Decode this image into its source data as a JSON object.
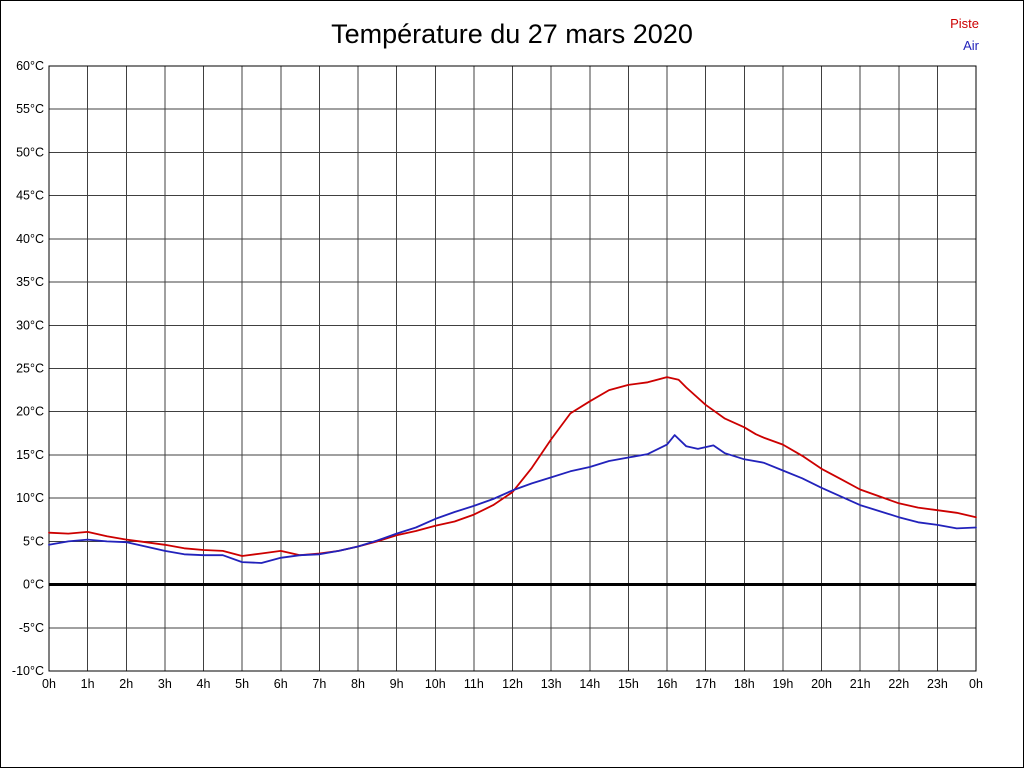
{
  "title": "Température du 27 mars 2020",
  "legend": [
    {
      "label": "Piste",
      "color": "#cc0000"
    },
    {
      "label": "Air",
      "color": "#2222bb"
    }
  ],
  "chart_data": {
    "type": "line",
    "title": "Température du 27 mars 2020",
    "xlabel": "",
    "ylabel": "",
    "ylim": [
      -10,
      60
    ],
    "y_tick_step": 5,
    "y_tick_labels": [
      "60°C",
      "55°C",
      "50°C",
      "45°C",
      "40°C",
      "35°C",
      "30°C",
      "25°C",
      "20°C",
      "15°C",
      "10°C",
      "5°C",
      "0°C",
      "-5°C",
      "-10°C"
    ],
    "x_range_hours": [
      0,
      24
    ],
    "x_tick_labels": [
      "0h",
      "1h",
      "2h",
      "3h",
      "4h",
      "5h",
      "6h",
      "7h",
      "8h",
      "9h",
      "10h",
      "11h",
      "12h",
      "13h",
      "14h",
      "15h",
      "16h",
      "17h",
      "18h",
      "19h",
      "20h",
      "21h",
      "22h",
      "23h",
      "0h"
    ],
    "grid": true,
    "grid_color": "#404040",
    "zero_line": true,
    "zero_line_color": "#000000",
    "legend_position": "top-right",
    "series": [
      {
        "name": "Piste",
        "color": "#cc0000",
        "points": [
          [
            0,
            6.0
          ],
          [
            0.5,
            5.9
          ],
          [
            1,
            6.1
          ],
          [
            1.5,
            5.6
          ],
          [
            2,
            5.2
          ],
          [
            2.5,
            4.9
          ],
          [
            3,
            4.6
          ],
          [
            3.5,
            4.2
          ],
          [
            4,
            4.0
          ],
          [
            4.5,
            3.9
          ],
          [
            5,
            3.3
          ],
          [
            5.5,
            3.6
          ],
          [
            6,
            3.9
          ],
          [
            6.5,
            3.4
          ],
          [
            7,
            3.6
          ],
          [
            7.5,
            3.9
          ],
          [
            8,
            4.4
          ],
          [
            8.5,
            5.0
          ],
          [
            9,
            5.7
          ],
          [
            9.5,
            6.2
          ],
          [
            10,
            6.8
          ],
          [
            10.5,
            7.3
          ],
          [
            11,
            8.1
          ],
          [
            11.5,
            9.2
          ],
          [
            12,
            10.7
          ],
          [
            12.5,
            13.5
          ],
          [
            13,
            16.8
          ],
          [
            13.5,
            19.8
          ],
          [
            14,
            21.2
          ],
          [
            14.5,
            22.5
          ],
          [
            15,
            23.1
          ],
          [
            15.5,
            23.4
          ],
          [
            16,
            24.0
          ],
          [
            16.3,
            23.7
          ],
          [
            16.5,
            22.8
          ],
          [
            17,
            20.8
          ],
          [
            17.5,
            19.2
          ],
          [
            18,
            18.2
          ],
          [
            18.3,
            17.4
          ],
          [
            18.5,
            17.0
          ],
          [
            19,
            16.2
          ],
          [
            19.5,
            14.9
          ],
          [
            20,
            13.4
          ],
          [
            20.5,
            12.2
          ],
          [
            21,
            11.0
          ],
          [
            21.5,
            10.2
          ],
          [
            22,
            9.4
          ],
          [
            22.5,
            8.9
          ],
          [
            23,
            8.6
          ],
          [
            23.5,
            8.3
          ],
          [
            24,
            7.8
          ]
        ]
      },
      {
        "name": "Air",
        "color": "#2222bb",
        "points": [
          [
            0,
            4.6
          ],
          [
            0.5,
            5.0
          ],
          [
            1,
            5.2
          ],
          [
            1.5,
            5.0
          ],
          [
            2,
            4.9
          ],
          [
            2.5,
            4.4
          ],
          [
            3,
            3.9
          ],
          [
            3.5,
            3.5
          ],
          [
            4,
            3.4
          ],
          [
            4.5,
            3.4
          ],
          [
            5,
            2.6
          ],
          [
            5.5,
            2.5
          ],
          [
            6,
            3.1
          ],
          [
            6.5,
            3.4
          ],
          [
            7,
            3.5
          ],
          [
            7.5,
            3.9
          ],
          [
            8,
            4.4
          ],
          [
            8.5,
            5.1
          ],
          [
            9,
            5.9
          ],
          [
            9.5,
            6.6
          ],
          [
            10,
            7.6
          ],
          [
            10.5,
            8.4
          ],
          [
            11,
            9.1
          ],
          [
            11.5,
            9.9
          ],
          [
            12,
            10.9
          ],
          [
            12.5,
            11.7
          ],
          [
            13,
            12.4
          ],
          [
            13.5,
            13.1
          ],
          [
            14,
            13.6
          ],
          [
            14.5,
            14.3
          ],
          [
            15,
            14.7
          ],
          [
            15.5,
            15.1
          ],
          [
            16,
            16.2
          ],
          [
            16.2,
            17.3
          ],
          [
            16.5,
            16.0
          ],
          [
            16.8,
            15.7
          ],
          [
            17,
            15.9
          ],
          [
            17.2,
            16.1
          ],
          [
            17.5,
            15.2
          ],
          [
            18,
            14.5
          ],
          [
            18.5,
            14.1
          ],
          [
            19,
            13.2
          ],
          [
            19.5,
            12.3
          ],
          [
            20,
            11.2
          ],
          [
            20.5,
            10.2
          ],
          [
            21,
            9.2
          ],
          [
            21.5,
            8.5
          ],
          [
            22,
            7.8
          ],
          [
            22.5,
            7.2
          ],
          [
            23,
            6.9
          ],
          [
            23.5,
            6.5
          ],
          [
            24,
            6.6
          ]
        ]
      }
    ]
  }
}
